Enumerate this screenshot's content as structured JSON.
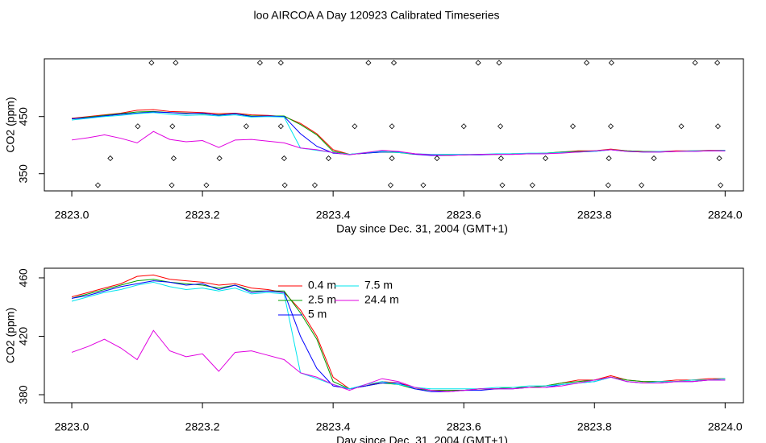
{
  "title": "loo AIRCOA A  Day 120923  Calibrated Timeseries",
  "chart_data": [
    {
      "type": "line",
      "ylabel": "CO2 (ppm)",
      "xlabel": "Day since Dec. 31, 2004 (GMT+1)",
      "xlim": [
        2822.958,
        2824.028
      ],
      "ylim": [
        320,
        551
      ],
      "xticks": [
        {
          "value": 2823.0,
          "label": "2823.0"
        },
        {
          "value": 2823.2,
          "label": "2823.2"
        },
        {
          "value": 2823.4,
          "label": "2823.4"
        },
        {
          "value": 2823.6,
          "label": "2823.6"
        },
        {
          "value": 2823.8,
          "label": "2823.8"
        },
        {
          "value": 2824.0,
          "label": "2824.0"
        }
      ],
      "yticks": [
        350,
        450
      ],
      "x": [
        2823.0,
        2823.025,
        2823.05,
        2823.075,
        2823.1,
        2823.125,
        2823.15,
        2823.175,
        2823.2,
        2823.225,
        2823.25,
        2823.275,
        2823.3,
        2823.325,
        2823.35,
        2823.375,
        2823.4,
        2823.425,
        2823.45,
        2823.475,
        2823.5,
        2823.525,
        2823.55,
        2823.575,
        2823.6,
        2823.625,
        2823.65,
        2823.675,
        2823.7,
        2823.725,
        2823.75,
        2823.775,
        2823.8,
        2823.825,
        2823.85,
        2823.875,
        2823.9,
        2823.925,
        2823.95,
        2823.975,
        2824.0
      ],
      "series": [
        {
          "color": "#ff0000",
          "values": [
            447,
            450,
            453,
            456,
            461,
            462,
            459,
            458,
            457,
            455,
            456,
            453,
            452,
            450,
            438,
            420,
            392,
            384,
            386,
            389,
            388,
            385,
            383,
            383,
            383,
            384,
            384,
            385,
            385,
            386,
            388,
            390,
            390,
            393,
            390,
            389,
            389,
            390,
            390,
            391,
            391
          ]
        },
        {
          "color": "#00a000",
          "values": [
            446,
            449,
            452,
            455,
            458,
            459,
            457,
            456,
            455,
            453,
            455,
            451,
            451,
            451,
            436,
            418,
            389,
            384,
            386,
            388,
            387,
            384,
            383,
            383,
            383,
            384,
            384,
            385,
            385,
            386,
            388,
            389,
            390,
            392,
            390,
            389,
            389,
            389,
            390,
            390,
            391
          ]
        },
        {
          "color": "#0000ff",
          "values": [
            446,
            448,
            451,
            454,
            456,
            458,
            457,
            455,
            456,
            452,
            455,
            450,
            451,
            450,
            420,
            398,
            386,
            384,
            386,
            388,
            388,
            384,
            382,
            382,
            383,
            383,
            384,
            384,
            385,
            385,
            387,
            388,
            389,
            392,
            389,
            388,
            388,
            389,
            389,
            390,
            390
          ]
        },
        {
          "color": "#00e5ee",
          "values": [
            444,
            447,
            450,
            452,
            455,
            457,
            454,
            452,
            453,
            451,
            453,
            449,
            450,
            449,
            395,
            391,
            387,
            384,
            387,
            389,
            387,
            385,
            384,
            384,
            384,
            384,
            385,
            385,
            386,
            386,
            387,
            388,
            389,
            392,
            389,
            388,
            389,
            389,
            390,
            390,
            391
          ]
        },
        {
          "color": "#e000e0",
          "values": [
            409,
            413,
            418,
            412,
            404,
            424,
            410,
            406,
            408,
            396,
            409,
            410,
            407,
            404,
            395,
            392,
            387,
            383,
            387,
            391,
            389,
            385,
            383,
            382,
            383,
            384,
            384,
            384,
            385,
            385,
            386,
            388,
            390,
            392,
            389,
            388,
            388,
            389,
            389,
            390,
            390
          ]
        },
        {
          "type": "scatter",
          "color": "#000000",
          "x": [
            2823.04,
            2823.059,
            2823.101,
            2823.122,
            2823.153,
            2823.154,
            2823.156,
            2823.159,
            2823.206,
            2823.226,
            2823.267,
            2823.288,
            2823.32,
            2823.32,
            2823.325,
            2823.326,
            2823.372,
            2823.393,
            2823.433,
            2823.454,
            2823.488,
            2823.49,
            2823.49,
            2823.493,
            2823.538,
            2823.559,
            2823.6,
            2823.622,
            2823.654,
            2823.656,
            2823.657,
            2823.659,
            2823.705,
            2823.725,
            2823.767,
            2823.788,
            2823.821,
            2823.822,
            2823.825,
            2823.826,
            2823.872,
            2823.891,
            2823.933,
            2823.954,
            2823.988,
            2823.989,
            2823.991,
            2823.993
          ],
          "values": [
            330,
            377,
            433,
            544,
            330,
            433,
            377,
            544,
            330,
            377,
            433,
            544,
            544,
            433,
            377,
            330,
            330,
            377,
            433,
            544,
            330,
            433,
            377,
            544,
            330,
            377,
            433,
            544,
            544,
            433,
            377,
            330,
            330,
            377,
            433,
            544,
            330,
            377,
            433,
            544,
            330,
            377,
            433,
            544,
            544,
            433,
            377,
            330
          ]
        }
      ]
    },
    {
      "type": "line",
      "ylabel": "CO2 (ppm)",
      "xlabel": "Day since Dec. 31, 2004 (GMT+1)",
      "xlim": [
        2822.958,
        2824.028
      ],
      "ylim": [
        374.5,
        466.6
      ],
      "xticks": [
        {
          "value": 2823.0,
          "label": "2823.0"
        },
        {
          "value": 2823.2,
          "label": "2823.2"
        },
        {
          "value": 2823.4,
          "label": "2823.4"
        },
        {
          "value": 2823.6,
          "label": "2823.6"
        },
        {
          "value": 2823.8,
          "label": "2823.8"
        },
        {
          "value": 2824.0,
          "label": "2824.0"
        }
      ],
      "yticks": [
        380,
        420,
        460
      ],
      "legend": "top",
      "x": [
        2823.0,
        2823.025,
        2823.05,
        2823.075,
        2823.1,
        2823.125,
        2823.15,
        2823.175,
        2823.2,
        2823.225,
        2823.25,
        2823.275,
        2823.3,
        2823.325,
        2823.35,
        2823.375,
        2823.4,
        2823.425,
        2823.45,
        2823.475,
        2823.5,
        2823.525,
        2823.55,
        2823.575,
        2823.6,
        2823.625,
        2823.65,
        2823.675,
        2823.7,
        2823.725,
        2823.75,
        2823.775,
        2823.8,
        2823.825,
        2823.85,
        2823.875,
        2823.9,
        2823.925,
        2823.95,
        2823.975,
        2824.0
      ],
      "series": [
        {
          "name": "0.4 m",
          "color": "#ff0000",
          "values": [
            447,
            450,
            453,
            456,
            461,
            462,
            459,
            458,
            457,
            455,
            456,
            453,
            452,
            450,
            438,
            420,
            392,
            384,
            386,
            389,
            388,
            385,
            383,
            383,
            383,
            384,
            384,
            385,
            385,
            386,
            388,
            390,
            390,
            393,
            390,
            389,
            389,
            390,
            390,
            391,
            391
          ]
        },
        {
          "name": "2.5 m",
          "color": "#00a000",
          "values": [
            446,
            449,
            452,
            455,
            458,
            459,
            457,
            456,
            455,
            453,
            455,
            451,
            451,
            451,
            436,
            418,
            389,
            384,
            386,
            388,
            387,
            384,
            383,
            383,
            383,
            384,
            384,
            385,
            385,
            386,
            388,
            389,
            390,
            392,
            390,
            389,
            389,
            389,
            390,
            390,
            391
          ]
        },
        {
          "name": "5 m",
          "color": "#0000ff",
          "values": [
            446,
            448,
            451,
            454,
            456,
            458,
            457,
            455,
            456,
            452,
            455,
            450,
            451,
            450,
            420,
            398,
            386,
            384,
            386,
            388,
            388,
            384,
            382,
            382,
            383,
            383,
            384,
            384,
            385,
            385,
            387,
            388,
            389,
            392,
            389,
            388,
            388,
            389,
            389,
            390,
            390
          ]
        },
        {
          "name": "7.5 m",
          "color": "#00e5ee",
          "values": [
            444,
            447,
            450,
            452,
            455,
            457,
            454,
            452,
            453,
            451,
            453,
            449,
            450,
            449,
            395,
            391,
            387,
            384,
            387,
            389,
            387,
            385,
            384,
            384,
            384,
            384,
            385,
            385,
            386,
            386,
            387,
            388,
            389,
            392,
            389,
            388,
            389,
            389,
            390,
            390,
            391
          ]
        },
        {
          "name": "24.4 m",
          "color": "#e000e0",
          "values": [
            409,
            413,
            418,
            412,
            404,
            424,
            410,
            406,
            408,
            396,
            409,
            410,
            407,
            404,
            395,
            392,
            387,
            383,
            387,
            391,
            389,
            385,
            383,
            382,
            383,
            384,
            384,
            384,
            385,
            385,
            386,
            388,
            390,
            392,
            389,
            388,
            388,
            389,
            389,
            390,
            390
          ]
        }
      ]
    }
  ]
}
